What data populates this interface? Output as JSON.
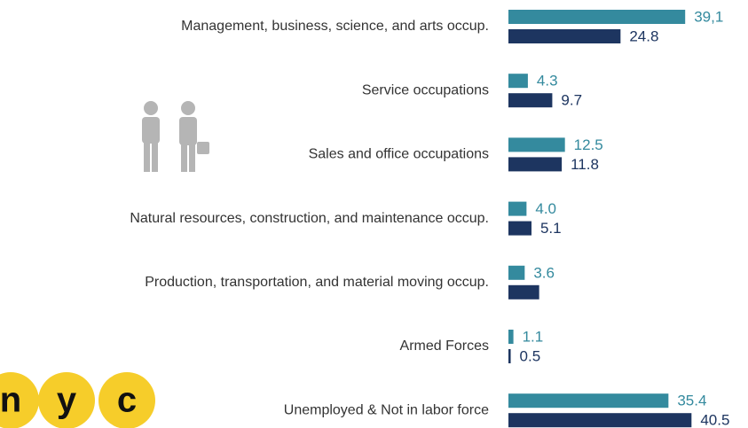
{
  "chart_data": {
    "type": "barh",
    "categories": [
      "Management, business, science, and arts occup.",
      "Service occupations",
      "Sales and office occupations",
      "Natural resources, construction, and maintenance occup.",
      "Production, transportation, and material moving occup.",
      "Armed Forces",
      "Unemployed & Not in labor force"
    ],
    "series": [
      {
        "color": "#348a9e",
        "values": [
          39.1,
          4.3,
          12.5,
          4.0,
          3.6,
          1.1,
          35.4
        ],
        "value_labels": [
          "39,1",
          "4.3",
          "12.5",
          "4.0",
          "3.6",
          "1.1",
          "35.4"
        ]
      },
      {
        "color": "#1d3560",
        "values": [
          24.8,
          9.7,
          11.8,
          5.1,
          6.8,
          0.5,
          40.5
        ],
        "value_labels": [
          "24.8",
          "9.7",
          "11.8",
          "5.1",
          null,
          "0.5",
          "40.5"
        ]
      }
    ],
    "xlim": [
      0,
      53
    ]
  },
  "logo": [
    "n",
    "y",
    "c"
  ]
}
